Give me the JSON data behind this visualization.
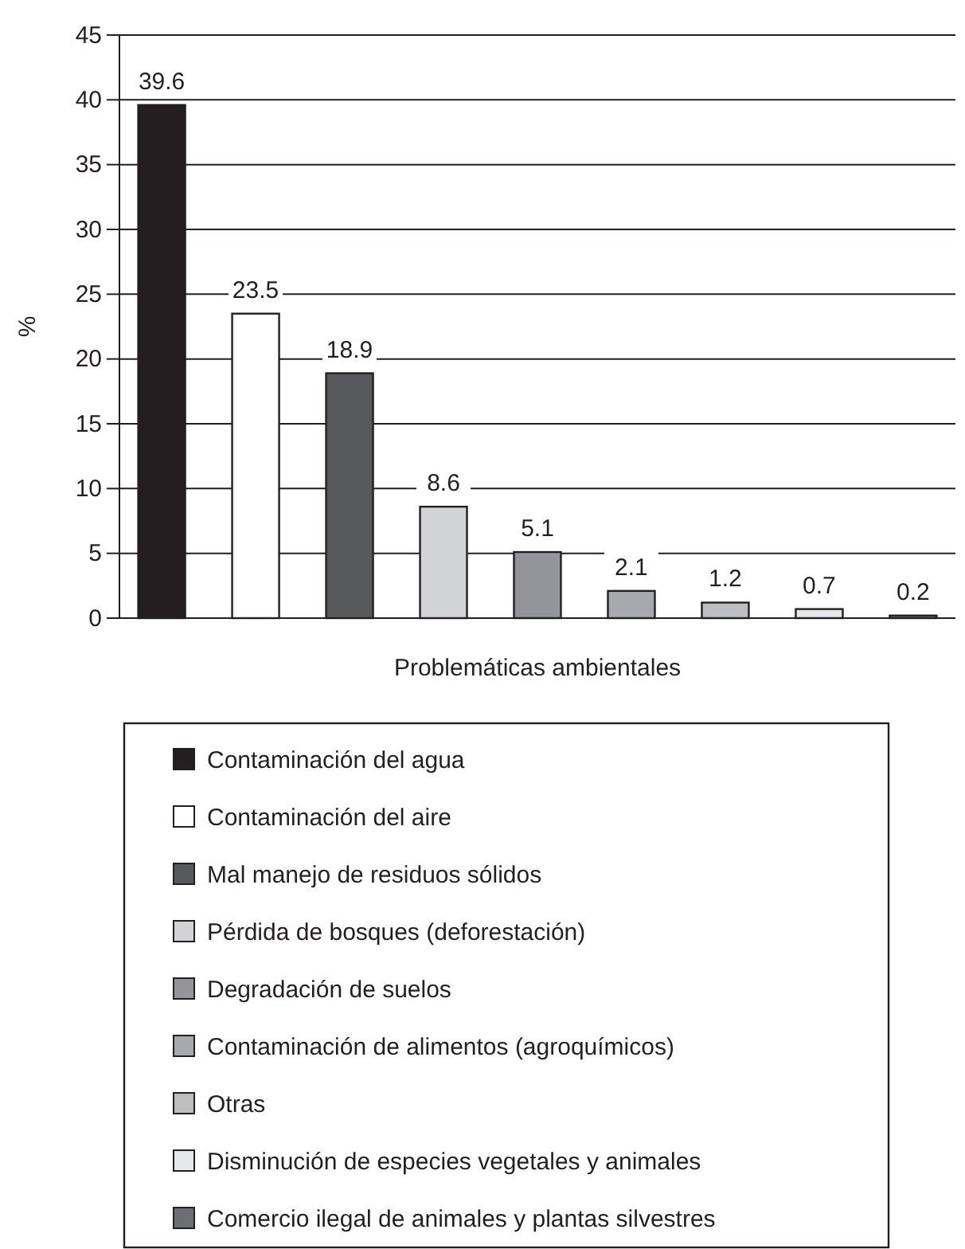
{
  "chart_data": {
    "type": "bar",
    "xlabel": "Problemáticas ambientales",
    "ylabel": "%",
    "categories": [
      null,
      null,
      null,
      null,
      null,
      null,
      null,
      null,
      null
    ],
    "series": [
      {
        "name": "Contaminación del agua",
        "color": "#231f20",
        "values": [
          39.6,
          null,
          null,
          null,
          null,
          null,
          null,
          null,
          null
        ]
      },
      {
        "name": "Contaminación del aire",
        "color": "#ffffff",
        "values": [
          null,
          23.5,
          null,
          null,
          null,
          null,
          null,
          null,
          null
        ]
      },
      {
        "name": "Mal manejo de residuos sólidos",
        "color": "#58595b",
        "values": [
          null,
          null,
          18.9,
          null,
          null,
          null,
          null,
          null,
          null
        ]
      },
      {
        "name": "Pérdida de bosques (deforestación)",
        "color": "#d1d3d4",
        "values": [
          null,
          null,
          null,
          8.6,
          null,
          null,
          null,
          null,
          null
        ]
      },
      {
        "name": "Degradación de suelos",
        "color": "#939598",
        "values": [
          null,
          null,
          null,
          null,
          5.1,
          null,
          null,
          null,
          null
        ]
      },
      {
        "name": "Contaminación de alimentos (agroquímicos)",
        "color": "#a7a9ac",
        "values": [
          null,
          null,
          null,
          null,
          null,
          2.1,
          null,
          null,
          null
        ]
      },
      {
        "name": "Otras",
        "color": "#bcbec0",
        "values": [
          null,
          null,
          null,
          null,
          null,
          null,
          1.2,
          null,
          null
        ]
      },
      {
        "name": "Disminución de especies vegetales y animales",
        "color": "#e6e7e8",
        "values": [
          null,
          null,
          null,
          null,
          null,
          null,
          null,
          0.7,
          null
        ]
      },
      {
        "name": "Comercio ilegal de animales y plantas silvestres",
        "color": "#6d6e71",
        "values": [
          null,
          null,
          null,
          null,
          null,
          null,
          null,
          null,
          0.2
        ]
      }
    ],
    "ylim": [
      0,
      45
    ],
    "yticks": [
      0,
      5,
      10,
      15,
      20,
      25,
      30,
      35,
      40,
      45
    ],
    "grid": "y",
    "data_labels": true,
    "legend": "bottom"
  }
}
